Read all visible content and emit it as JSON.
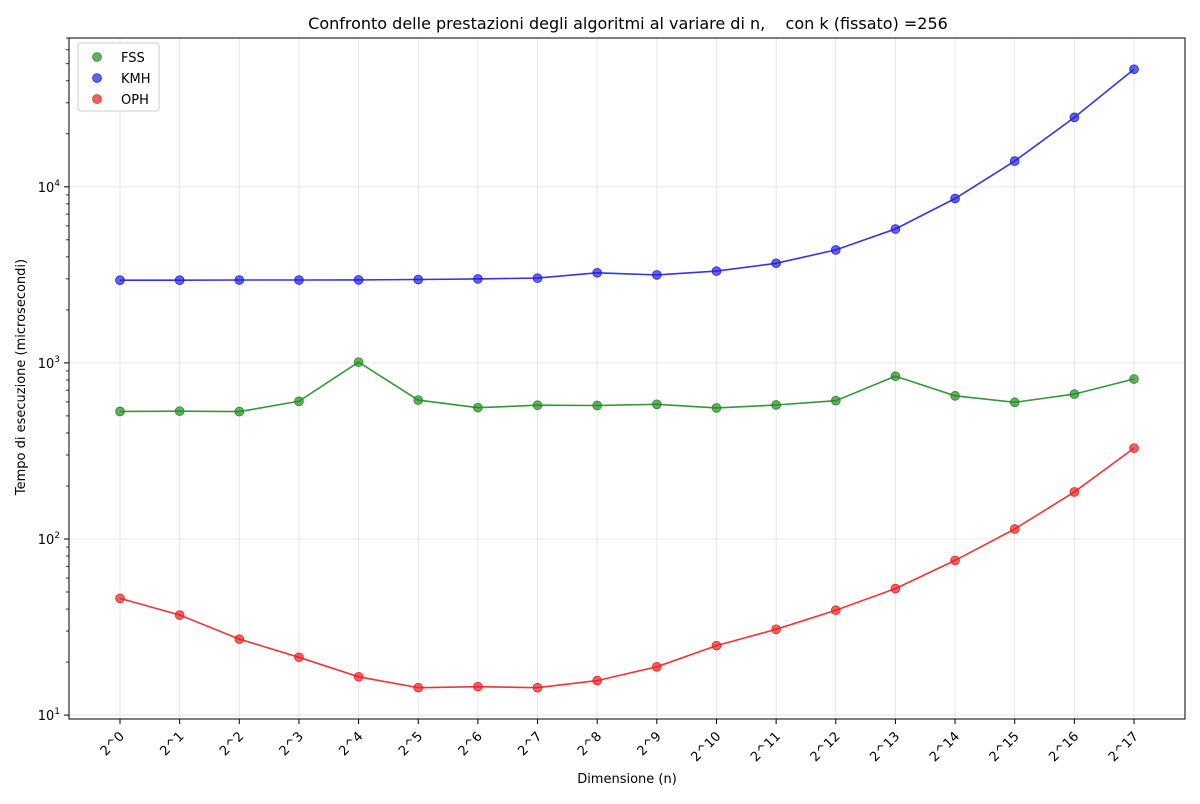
{
  "chart_data": {
    "type": "line",
    "title": "Confronto delle prestazioni degli algoritmi al variare di n,    con k (fissato) =256",
    "xlabel": "Dimensione (n)",
    "ylabel": "Tempo di esecuzione (microsecondi)",
    "yscale": "log",
    "ylim": [
      9.5,
      70000
    ],
    "y_ticks": [
      {
        "value": 10,
        "base": "10",
        "exp": "1"
      },
      {
        "value": 100,
        "base": "10",
        "exp": "2"
      },
      {
        "value": 1000,
        "base": "10",
        "exp": "3"
      },
      {
        "value": 10000,
        "base": "10",
        "exp": "4"
      }
    ],
    "grid": true,
    "legend_position": "top-left",
    "categories": [
      "2^0",
      "2^1",
      "2^2",
      "2^3",
      "2^4",
      "2^5",
      "2^6",
      "2^7",
      "2^8",
      "2^9",
      "2^10",
      "2^11",
      "2^12",
      "2^13",
      "2^14",
      "2^15",
      "2^16",
      "2^17"
    ],
    "series": [
      {
        "name": "FSS",
        "color": "#228b22",
        "values": [
          530,
          532,
          529,
          605,
          1010,
          615,
          557,
          575,
          573,
          582,
          555,
          577,
          610,
          840,
          650,
          597,
          665,
          810
        ]
      },
      {
        "name": "KMH",
        "color": "#1f1fe6",
        "values": [
          2950,
          2950,
          2955,
          2955,
          2960,
          2975,
          3000,
          3030,
          3250,
          3160,
          3320,
          3680,
          4380,
          5760,
          8580,
          14000,
          24800,
          46500
        ]
      },
      {
        "name": "OPH",
        "color": "#ee1f1f",
        "values": [
          46,
          37,
          27,
          21.3,
          16.5,
          14.3,
          14.5,
          14.3,
          15.7,
          18.8,
          24.8,
          30.7,
          39.4,
          52.3,
          75.6,
          114,
          185,
          328
        ]
      }
    ]
  }
}
